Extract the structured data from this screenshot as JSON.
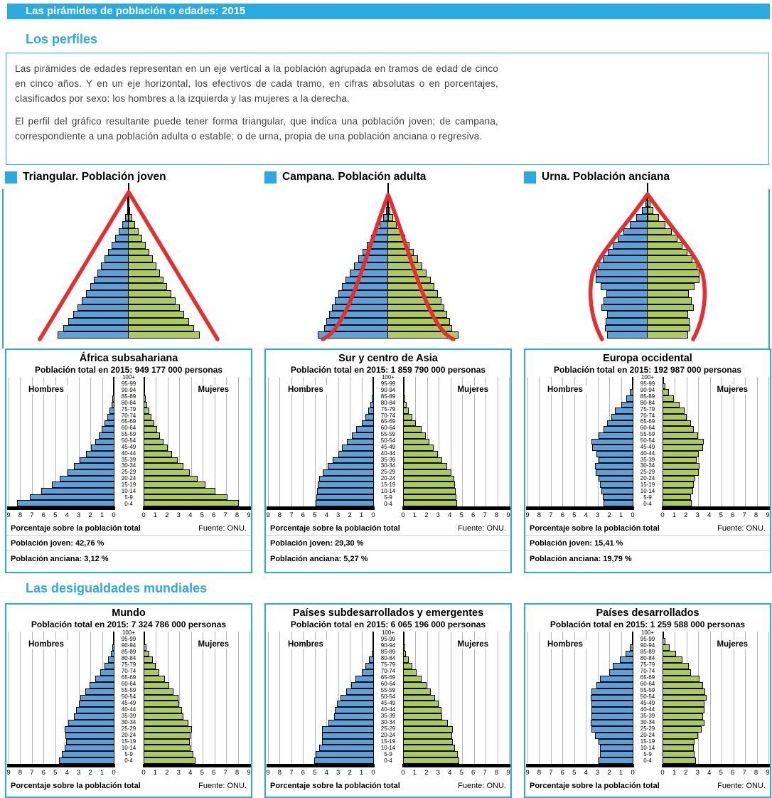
{
  "header": {
    "title": "Las pirámides de población o edades: 2015"
  },
  "sections": {
    "profiles": "Los perfiles",
    "inequalities": "Las desigualdades mundiales"
  },
  "intro": {
    "p1": "Las pirámides de edades representan en un eje vertical a la población agrupada en tramos de edad de cinco en cinco años. Y en un eje horizontal, los efectivos de cada tramo, en cifras absolutas o en porcentajes, clasificados por sexo: los hombres a la izquierda y las mujeres a la derecha.",
    "p2": "El perfil del gráfico resultante puede tener forma triangular, que indica una población joven; de campana, correspondiente a una población adulta o estable; o de urna, propia de una población anciana o regresiva."
  },
  "labels": {
    "men": "Hombres",
    "women": "Mujeres",
    "x_axis": "Porcentaje sobre la población total",
    "source": "Fuente: ONU."
  },
  "axis": {
    "max": 9,
    "left_ticks": [
      "9",
      "8",
      "7",
      "6",
      "5",
      "4",
      "3",
      "2",
      "1",
      "0"
    ],
    "right_ticks": [
      "0",
      "1",
      "2",
      "3",
      "4",
      "5",
      "6",
      "7",
      "8",
      "9"
    ]
  },
  "age_groups": [
    "100+",
    "95-99",
    "90-94",
    "85-89",
    "80-84",
    "75-79",
    "70-74",
    "65-69",
    "60-64",
    "55-59",
    "50-54",
    "45-49",
    "40-44",
    "35-39",
    "30-34",
    "25-29",
    "20-24",
    "15-19",
    "10-14",
    "5-9",
    "0-4"
  ],
  "example_profiles": [
    {
      "heading": "Triangular. Población joven",
      "shape": "triangular",
      "max": 10,
      "values": [
        0.03,
        0.08,
        0.2,
        0.5,
        0.9,
        1.4,
        1.9,
        2.4,
        2.9,
        3.4,
        3.9,
        4.4,
        4.9,
        5.4,
        6.0,
        6.6,
        7.2,
        7.8,
        8.5,
        9.2,
        10
      ]
    },
    {
      "heading": "Campana. Población adulta",
      "shape": "campana",
      "max": 10,
      "values": [
        0.05,
        0.12,
        0.3,
        0.7,
        1.2,
        1.8,
        2.4,
        3.0,
        3.6,
        4.2,
        4.8,
        5.4,
        6.0,
        6.5,
        7.0,
        7.5,
        7.9,
        8.3,
        8.7,
        9.0,
        9.9
      ]
    },
    {
      "heading": "Urna. Población anciana",
      "shape": "urna",
      "max": 10,
      "values": [
        0.1,
        0.35,
        0.8,
        1.6,
        2.5,
        3.4,
        4.2,
        4.9,
        5.6,
        6.3,
        7.0,
        7.3,
        7.3,
        6.6,
        5.8,
        6.2,
        6.5,
        5.7,
        5.9,
        6.0,
        5.7
      ]
    }
  ],
  "chart_data": [
    {
      "type": "pyramid-bar",
      "title": "África subsahariana",
      "subtitle": "Población total en 2015: 949 177 000 personas",
      "young_stat": "Población joven: 42,76 %",
      "old_stat": "Población anciana: 3,12 %",
      "xlabel": "Porcentaje sobre la población total",
      "xlim": [
        0,
        9
      ],
      "men": [
        0.01,
        0.02,
        0.05,
        0.1,
        0.2,
        0.35,
        0.55,
        0.8,
        1.05,
        1.3,
        1.6,
        1.95,
        2.4,
        2.9,
        3.4,
        3.95,
        4.6,
        5.3,
        6.2,
        7.2,
        8.3
      ],
      "women": [
        0.01,
        0.02,
        0.06,
        0.12,
        0.25,
        0.4,
        0.6,
        0.85,
        1.1,
        1.35,
        1.65,
        2.0,
        2.4,
        2.85,
        3.35,
        3.9,
        4.55,
        5.25,
        6.1,
        7.1,
        8.1
      ]
    },
    {
      "type": "pyramid-bar",
      "title": "Sur y centro de Asia",
      "subtitle": "Población total en 2015: 1 859 790 000 personas",
      "young_stat": "Población joven: 29,30 %",
      "old_stat": "Población anciana: 5,27 %",
      "xlabel": "Porcentaje sobre la población total",
      "xlim": [
        0,
        9
      ],
      "men": [
        0.01,
        0.02,
        0.05,
        0.1,
        0.22,
        0.4,
        0.65,
        1.0,
        1.45,
        1.85,
        2.25,
        2.65,
        3.0,
        3.45,
        3.9,
        4.3,
        4.6,
        4.75,
        4.8,
        4.85,
        4.9
      ],
      "women": [
        0.01,
        0.02,
        0.05,
        0.12,
        0.25,
        0.45,
        0.7,
        1.05,
        1.5,
        1.9,
        2.2,
        2.55,
        2.9,
        3.3,
        3.7,
        4.1,
        4.3,
        4.4,
        4.45,
        4.5,
        4.55
      ]
    },
    {
      "type": "pyramid-bar",
      "title": "Europa occidental",
      "subtitle": "Población total en 2015: 192 987 000 personas",
      "young_stat": "Población joven: 15,41 %",
      "old_stat": "Población anciana: 19,79 %",
      "xlabel": "Porcentaje sobre la población total",
      "xlim": [
        0,
        9
      ],
      "men": [
        0.02,
        0.08,
        0.25,
        0.55,
        1.0,
        1.5,
        1.85,
        2.2,
        2.5,
        2.9,
        3.5,
        3.45,
        3.1,
        2.95,
        3.2,
        3.15,
        2.9,
        2.8,
        2.7,
        2.55,
        2.5
      ],
      "women": [
        0.05,
        0.18,
        0.5,
        0.9,
        1.4,
        1.85,
        2.0,
        2.35,
        2.6,
        2.95,
        3.45,
        3.4,
        3.05,
        2.85,
        3.1,
        3.05,
        2.75,
        2.6,
        2.58,
        2.4,
        2.45
      ]
    },
    {
      "type": "pyramid-bar",
      "title": "Mundo",
      "subtitle": "Población total en 2015: 7 324 786 000 personas",
      "xlabel": "Porcentaje sobre la población total",
      "xlim": [
        0,
        9
      ],
      "men": [
        0.01,
        0.03,
        0.1,
        0.25,
        0.5,
        0.8,
        1.15,
        1.6,
        2.05,
        2.45,
        2.85,
        3.0,
        3.25,
        3.4,
        3.9,
        4.2,
        4.15,
        4.1,
        4.2,
        4.45,
        4.7
      ],
      "women": [
        0.02,
        0.07,
        0.2,
        0.4,
        0.7,
        1.0,
        1.3,
        1.75,
        2.15,
        2.5,
        2.9,
        3.0,
        3.2,
        3.35,
        3.8,
        4.1,
        3.95,
        3.9,
        3.95,
        4.2,
        4.4
      ]
    },
    {
      "type": "pyramid-bar",
      "title": "Países subdesarrollados y emergentes",
      "subtitle": "Población total en 2015: 6 065 196 000 personas",
      "xlabel": "Porcentaje sobre la población total",
      "xlim": [
        0,
        9
      ],
      "men": [
        0.01,
        0.02,
        0.06,
        0.15,
        0.35,
        0.65,
        1.0,
        1.5,
        1.9,
        2.3,
        2.8,
        3.1,
        3.3,
        3.35,
        3.85,
        4.35,
        4.35,
        4.4,
        4.6,
        4.9,
        5.05
      ],
      "women": [
        0.01,
        0.03,
        0.1,
        0.2,
        0.45,
        0.75,
        1.1,
        1.55,
        1.95,
        2.3,
        2.7,
        3.0,
        3.2,
        3.3,
        3.75,
        4.2,
        4.15,
        4.2,
        4.35,
        4.6,
        4.75
      ]
    },
    {
      "type": "pyramid-bar",
      "title": "Países desarrollados",
      "subtitle": "Población total en 2015: 1 259 588 000 personas",
      "xlabel": "Porcentaje sobre la población total",
      "xlim": [
        0,
        9
      ],
      "men": [
        0.01,
        0.07,
        0.25,
        0.6,
        1.1,
        1.7,
        2.0,
        2.8,
        3.1,
        3.5,
        3.6,
        3.5,
        3.5,
        3.5,
        3.6,
        3.5,
        3.2,
        2.9,
        2.8,
        2.8,
        2.9
      ],
      "women": [
        0.04,
        0.2,
        0.55,
        1.1,
        1.65,
        2.2,
        2.4,
        3.1,
        3.4,
        3.6,
        3.7,
        3.5,
        3.5,
        3.4,
        3.5,
        3.3,
        3.0,
        2.7,
        2.6,
        2.7,
        2.8
      ]
    }
  ],
  "colors": {
    "accent": "#29ABE2",
    "male_bars": "#58A3DB",
    "female_bars": "#AFCB57",
    "profile_outline": "#E62E2E"
  }
}
